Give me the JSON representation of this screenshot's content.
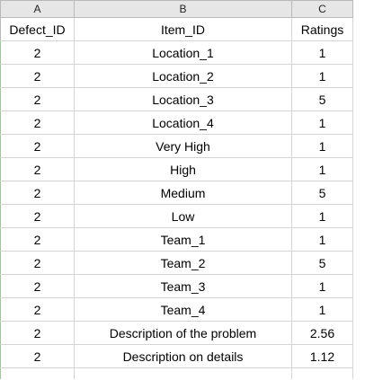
{
  "column_headers": [
    "A",
    "B",
    "C"
  ],
  "header_row": {
    "defect_id": "Defect_ID",
    "item_id": "Item_ID",
    "ratings": "Ratings"
  },
  "rows": [
    {
      "defect_id": "2",
      "item_id": "Location_1",
      "rating": "1"
    },
    {
      "defect_id": "2",
      "item_id": "Location_2",
      "rating": "1"
    },
    {
      "defect_id": "2",
      "item_id": "Location_3",
      "rating": "5"
    },
    {
      "defect_id": "2",
      "item_id": "Location_4",
      "rating": "1"
    },
    {
      "defect_id": "2",
      "item_id": "Very High",
      "rating": "1"
    },
    {
      "defect_id": "2",
      "item_id": "High",
      "rating": "1"
    },
    {
      "defect_id": "2",
      "item_id": "Medium",
      "rating": "5"
    },
    {
      "defect_id": "2",
      "item_id": "Low",
      "rating": "1"
    },
    {
      "defect_id": "2",
      "item_id": "Team_1",
      "rating": "1"
    },
    {
      "defect_id": "2",
      "item_id": "Team_2",
      "rating": "5"
    },
    {
      "defect_id": "2",
      "item_id": "Team_3",
      "rating": "1"
    },
    {
      "defect_id": "2",
      "item_id": "Team_4",
      "rating": "1"
    },
    {
      "defect_id": "2",
      "item_id": "Description of the problem",
      "rating": "2.56"
    },
    {
      "defect_id": "2",
      "item_id": "Description on details",
      "rating": "1.12"
    }
  ]
}
